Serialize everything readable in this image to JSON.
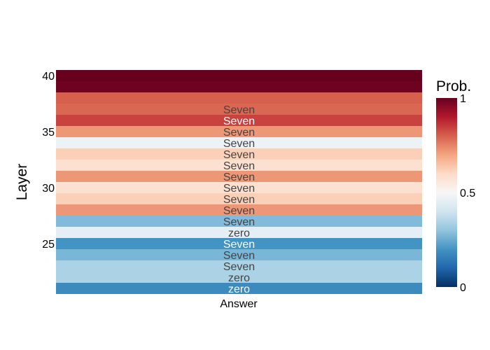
{
  "chart_data": {
    "type": "heatmap",
    "xlabel": "Answer",
    "ylabel": "Layer",
    "x_categories": [
      ""
    ],
    "ytick_labels": [
      "25",
      "30",
      "35",
      "40"
    ],
    "ytick_values": [
      25,
      30,
      35,
      40
    ],
    "ylim": [
      20.5,
      40.5
    ],
    "rows": [
      {
        "layer": 21,
        "prob": 0.18,
        "label": "zero"
      },
      {
        "layer": 22,
        "prob": 0.34,
        "label": "zero"
      },
      {
        "layer": 23,
        "prob": 0.34,
        "label": "Seven"
      },
      {
        "layer": 24,
        "prob": 0.27,
        "label": "Seven"
      },
      {
        "layer": 25,
        "prob": 0.2,
        "label": "Seven"
      },
      {
        "layer": 26,
        "prob": 0.45,
        "label": "zero"
      },
      {
        "layer": 27,
        "prob": 0.28,
        "label": "Seven"
      },
      {
        "layer": 28,
        "prob": 0.72,
        "label": "Seven"
      },
      {
        "layer": 29,
        "prob": 0.62,
        "label": "Seven"
      },
      {
        "layer": 30,
        "prob": 0.58,
        "label": "Seven"
      },
      {
        "layer": 31,
        "prob": 0.72,
        "label": "Seven"
      },
      {
        "layer": 32,
        "prob": 0.58,
        "label": "Seven"
      },
      {
        "layer": 33,
        "prob": 0.62,
        "label": "Seven"
      },
      {
        "layer": 34,
        "prob": 0.47,
        "label": "Seven"
      },
      {
        "layer": 35,
        "prob": 0.72,
        "label": "Seven"
      },
      {
        "layer": 36,
        "prob": 0.84,
        "label": "Seven"
      },
      {
        "layer": 37,
        "prob": 0.79,
        "label": "Seven"
      },
      {
        "layer": 38,
        "prob": 0.8,
        "label": ""
      },
      {
        "layer": 39,
        "prob": 0.99,
        "label": ""
      },
      {
        "layer": 40,
        "prob": 1.0,
        "label": ""
      }
    ],
    "colorbar": {
      "title": "Prob.",
      "range": [
        0,
        1
      ],
      "tick_labels": [
        "0",
        "0.5",
        "1"
      ],
      "tick_values": [
        0,
        0.5,
        1
      ]
    },
    "colorscale": "RdBu reversed",
    "colorscale_stops": [
      [
        0.0,
        "#053061"
      ],
      [
        0.1,
        "#2166ac"
      ],
      [
        0.2,
        "#4393c3"
      ],
      [
        0.3,
        "#92c5de"
      ],
      [
        0.4,
        "#d1e5f0"
      ],
      [
        0.5,
        "#f7f7f7"
      ],
      [
        0.6,
        "#fddbc7"
      ],
      [
        0.7,
        "#f4a582"
      ],
      [
        0.8,
        "#d6604d"
      ],
      [
        0.9,
        "#b2182b"
      ],
      [
        1.0,
        "#67001f"
      ]
    ]
  }
}
